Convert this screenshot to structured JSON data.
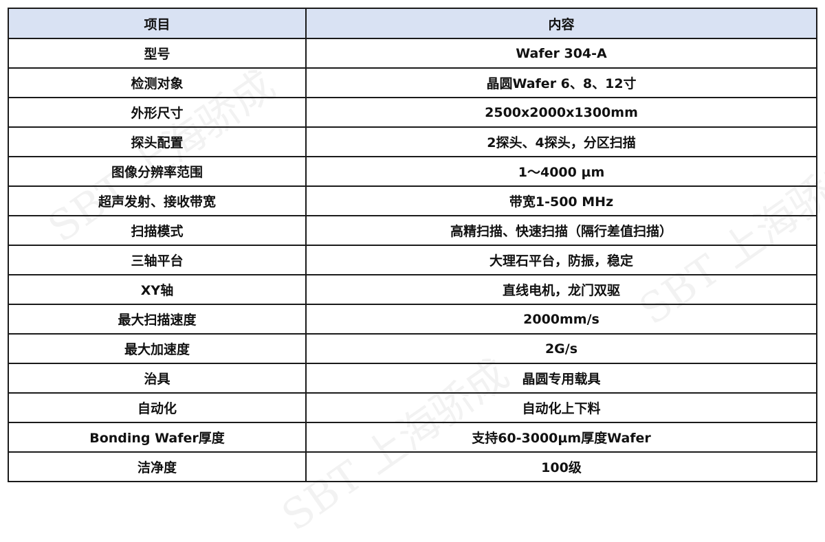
{
  "headers": [
    "项目",
    "内容"
  ],
  "rows": [
    [
      "型号",
      "Wafer 304-A"
    ],
    [
      "检测对象",
      "晶圆Wafer 6、8、12寸"
    ],
    [
      "外形尺寸",
      "2500x2000x1300mm"
    ],
    [
      "探头配置",
      "2探头、4探头，分区扫描"
    ],
    [
      "图像分辨率范围",
      "1～4000 µm"
    ],
    [
      "超声发射、接收带宽",
      "带宽1-500 MHz"
    ],
    [
      "扫描模式",
      "高精扫描、快速扫描（隔行差值扫描）"
    ],
    [
      "三轴平台",
      "大理石平台，防振，稳定"
    ],
    [
      "XY轴",
      "直线电机，龙门双驱"
    ],
    [
      "最大扫描速度",
      "2000mm/s"
    ],
    [
      "最大加速度",
      "2G/s"
    ],
    [
      "治具",
      "晶圆专用载具"
    ],
    [
      "自动化",
      "自动化上下料"
    ],
    [
      "Bonding Wafer厚度",
      "支持60-3000µm厚度Wafer"
    ],
    [
      "洁净度",
      "100级"
    ]
  ],
  "watermark": "SBT 上海骄成",
  "colors": {
    "header_bg": "#d9e2f3",
    "border": "#1a1a1a"
  }
}
